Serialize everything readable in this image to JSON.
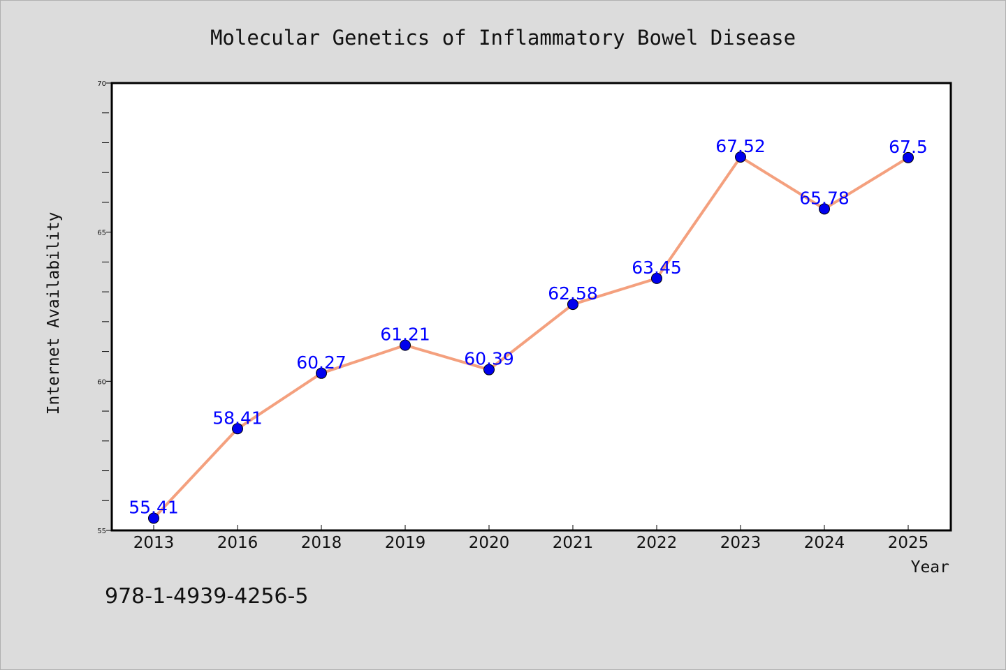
{
  "page": {
    "background": "#dcdcdc",
    "footer_text": "978-1-4939-4256-5"
  },
  "chart_data": {
    "type": "line",
    "title": "Molecular Genetics of Inflammatory Bowel Disease",
    "xlabel": "Year",
    "ylabel": "Internet Availability",
    "categories": [
      "2013",
      "2016",
      "2018",
      "2019",
      "2020",
      "2021",
      "2022",
      "2023",
      "2024",
      "2025"
    ],
    "series": [
      {
        "values": [
          55.41,
          58.41,
          60.27,
          61.21,
          60.39,
          62.58,
          63.45,
          67.52,
          65.78,
          67.5
        ],
        "labels": [
          "55.41",
          "58.41",
          "60.27",
          "61.21",
          "60.39",
          "62.58",
          "63.45",
          "67.52",
          "65.78",
          "67.5"
        ],
        "line_color": "#f4a07e",
        "marker_color": "#0000ee"
      }
    ],
    "ylim": [
      55,
      70
    ],
    "yticks": [
      "55",
      "60",
      "65",
      "70"
    ],
    "y_minor_step": 1,
    "grid": false,
    "legend": "none",
    "plot_background": "#ffffff",
    "label_color": "#0000ff"
  }
}
